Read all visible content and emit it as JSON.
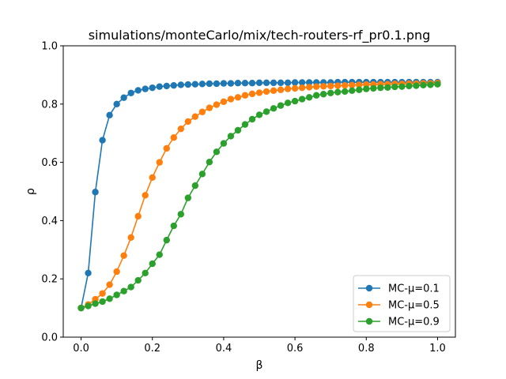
{
  "chart_data": {
    "type": "line",
    "title": "simulations/monteCarlo/mix/tech-routers-rf_pr0.1.png",
    "xlabel": "β",
    "ylabel": "ρ",
    "xlim": [
      -0.05,
      1.05
    ],
    "ylim": [
      0.0,
      1.0
    ],
    "xticks": [
      "0.0",
      "0.2",
      "0.4",
      "0.6",
      "0.8",
      "1.0"
    ],
    "yticks": [
      "0.0",
      "0.2",
      "0.4",
      "0.6",
      "0.8",
      "1.0"
    ],
    "legend_position": "lower-right",
    "x": [
      0.0,
      0.02,
      0.04,
      0.06,
      0.08,
      0.1,
      0.12,
      0.14,
      0.16,
      0.18,
      0.2,
      0.22,
      0.24,
      0.26,
      0.28,
      0.3,
      0.32,
      0.34,
      0.36,
      0.38,
      0.4,
      0.42,
      0.44,
      0.46,
      0.48,
      0.5,
      0.52,
      0.54,
      0.56,
      0.58,
      0.6,
      0.62,
      0.64,
      0.66,
      0.68,
      0.7,
      0.72,
      0.74,
      0.76,
      0.78,
      0.8,
      0.82,
      0.84,
      0.86,
      0.88,
      0.9,
      0.92,
      0.94,
      0.96,
      0.98,
      1.0
    ],
    "series": [
      {
        "name": "MC-μ=0.1",
        "color": "#1f77b4",
        "values": [
          0.1,
          0.22,
          0.498,
          0.676,
          0.762,
          0.8,
          0.822,
          0.838,
          0.847,
          0.852,
          0.856,
          0.86,
          0.862,
          0.864,
          0.866,
          0.867,
          0.868,
          0.869,
          0.87,
          0.87,
          0.871,
          0.871,
          0.872,
          0.872,
          0.872,
          0.873,
          0.873,
          0.873,
          0.873,
          0.873,
          0.874,
          0.874,
          0.874,
          0.874,
          0.874,
          0.874,
          0.875,
          0.875,
          0.875,
          0.875,
          0.875,
          0.875,
          0.875,
          0.875,
          0.875,
          0.875,
          0.875,
          0.875,
          0.875,
          0.875,
          0.875
        ]
      },
      {
        "name": "MC-μ=0.5",
        "color": "#ff7f0e",
        "values": [
          0.1,
          0.112,
          0.13,
          0.15,
          0.18,
          0.225,
          0.28,
          0.342,
          0.415,
          0.487,
          0.548,
          0.6,
          0.648,
          0.685,
          0.715,
          0.74,
          0.757,
          0.773,
          0.787,
          0.798,
          0.808,
          0.817,
          0.823,
          0.83,
          0.835,
          0.839,
          0.843,
          0.846,
          0.849,
          0.852,
          0.854,
          0.856,
          0.858,
          0.86,
          0.861,
          0.862,
          0.863,
          0.864,
          0.865,
          0.866,
          0.867,
          0.867,
          0.868,
          0.868,
          0.869,
          0.869,
          0.87,
          0.87,
          0.871,
          0.871,
          0.872
        ]
      },
      {
        "name": "MC-μ=0.9",
        "color": "#2ca02c",
        "values": [
          0.1,
          0.107,
          0.115,
          0.122,
          0.132,
          0.145,
          0.158,
          0.172,
          0.195,
          0.22,
          0.252,
          0.283,
          0.333,
          0.382,
          0.422,
          0.478,
          0.52,
          0.56,
          0.601,
          0.636,
          0.665,
          0.69,
          0.71,
          0.73,
          0.748,
          0.763,
          0.774,
          0.785,
          0.795,
          0.804,
          0.81,
          0.817,
          0.823,
          0.83,
          0.834,
          0.838,
          0.841,
          0.843,
          0.846,
          0.849,
          0.852,
          0.854,
          0.856,
          0.857,
          0.859,
          0.86,
          0.862,
          0.863,
          0.865,
          0.866,
          0.868
        ]
      }
    ]
  }
}
